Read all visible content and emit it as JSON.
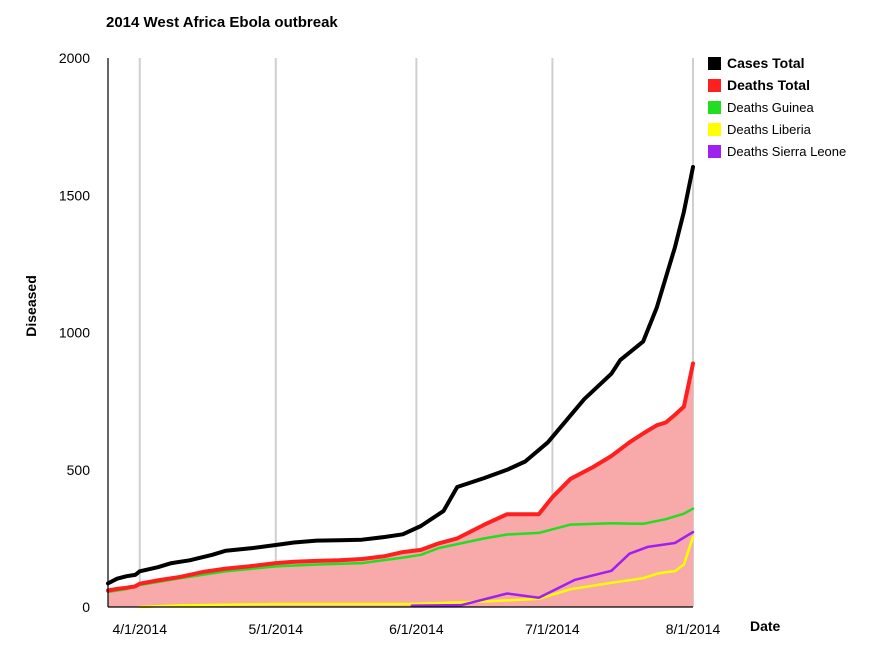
{
  "chart_data": {
    "type": "line",
    "title": "2014 West Africa Ebola outbreak",
    "xlabel": "Date",
    "ylabel": "Diseased",
    "x_range": [
      "2014-03-25",
      "2014-08-01"
    ],
    "ylim": [
      0,
      2000
    ],
    "y_ticks": [
      "0",
      "500",
      "1000",
      "1500",
      "2000"
    ],
    "x_ticks": [
      {
        "date": "2014-04-01",
        "label": "4/1/2014"
      },
      {
        "date": "2014-05-01",
        "label": "5/1/2014"
      },
      {
        "date": "2014-06-01",
        "label": "6/1/2014"
      },
      {
        "date": "2014-07-01",
        "label": "7/1/2014"
      },
      {
        "date": "2014-08-01",
        "label": "8/1/2014"
      }
    ],
    "grid": "vertical",
    "legend_position": "top-right",
    "fill_under": {
      "series": "Deaths Total",
      "color": "#f8a9a9"
    },
    "series": [
      {
        "name": "Cases Total",
        "color": "#000000",
        "bold": true,
        "points": [
          [
            "2014-03-25",
            86
          ],
          [
            "2014-03-27",
            103
          ],
          [
            "2014-03-29",
            112
          ],
          [
            "2014-03-31",
            117
          ],
          [
            "2014-04-01",
            130
          ],
          [
            "2014-04-05",
            145
          ],
          [
            "2014-04-08",
            160
          ],
          [
            "2014-04-12",
            170
          ],
          [
            "2014-04-17",
            190
          ],
          [
            "2014-04-20",
            205
          ],
          [
            "2014-04-26",
            215
          ],
          [
            "2014-05-01",
            226
          ],
          [
            "2014-05-05",
            235
          ],
          [
            "2014-05-10",
            242
          ],
          [
            "2014-05-15",
            243
          ],
          [
            "2014-05-20",
            245
          ],
          [
            "2014-05-25",
            255
          ],
          [
            "2014-05-29",
            265
          ],
          [
            "2014-06-02",
            295
          ],
          [
            "2014-06-07",
            350
          ],
          [
            "2014-06-10",
            437
          ],
          [
            "2014-06-16",
            470
          ],
          [
            "2014-06-21",
            500
          ],
          [
            "2014-06-25",
            530
          ],
          [
            "2014-06-30",
            600
          ],
          [
            "2014-07-08",
            757
          ],
          [
            "2014-07-14",
            850
          ],
          [
            "2014-07-16",
            900
          ],
          [
            "2014-07-21",
            967
          ],
          [
            "2014-07-24",
            1090
          ],
          [
            "2014-07-26",
            1200
          ],
          [
            "2014-07-28",
            1310
          ],
          [
            "2014-07-30",
            1440
          ],
          [
            "2014-08-01",
            1603
          ]
        ]
      },
      {
        "name": "Deaths Total",
        "color": "#ff1f1f",
        "bold": true,
        "points": [
          [
            "2014-03-25",
            60
          ],
          [
            "2014-03-27",
            66
          ],
          [
            "2014-03-29",
            70
          ],
          [
            "2014-03-31",
            75
          ],
          [
            "2014-04-01",
            85
          ],
          [
            "2014-04-05",
            97
          ],
          [
            "2014-04-10",
            110
          ],
          [
            "2014-04-15",
            128
          ],
          [
            "2014-04-20",
            140
          ],
          [
            "2014-04-25",
            148
          ],
          [
            "2014-05-01",
            160
          ],
          [
            "2014-05-05",
            165
          ],
          [
            "2014-05-10",
            168
          ],
          [
            "2014-05-15",
            170
          ],
          [
            "2014-05-20",
            175
          ],
          [
            "2014-05-25",
            185
          ],
          [
            "2014-05-29",
            200
          ],
          [
            "2014-06-02",
            208
          ],
          [
            "2014-06-06",
            232
          ],
          [
            "2014-06-10",
            250
          ],
          [
            "2014-06-16",
            300
          ],
          [
            "2014-06-21",
            338
          ],
          [
            "2014-06-25",
            338
          ],
          [
            "2014-06-28",
            338
          ],
          [
            "2014-07-01",
            400
          ],
          [
            "2014-07-05",
            467
          ],
          [
            "2014-07-10",
            510
          ],
          [
            "2014-07-14",
            550
          ],
          [
            "2014-07-18",
            600
          ],
          [
            "2014-07-21",
            632
          ],
          [
            "2014-07-24",
            662
          ],
          [
            "2014-07-26",
            672
          ],
          [
            "2014-07-28",
            700
          ],
          [
            "2014-07-30",
            730
          ],
          [
            "2014-08-01",
            887
          ]
        ]
      },
      {
        "name": "Deaths Guinea",
        "color": "#22dd22",
        "bold": false,
        "points": [
          [
            "2014-03-25",
            55
          ],
          [
            "2014-03-29",
            65
          ],
          [
            "2014-04-01",
            80
          ],
          [
            "2014-04-10",
            105
          ],
          [
            "2014-04-20",
            130
          ],
          [
            "2014-05-01",
            148
          ],
          [
            "2014-05-10",
            155
          ],
          [
            "2014-05-20",
            160
          ],
          [
            "2014-05-29",
            180
          ],
          [
            "2014-06-02",
            190
          ],
          [
            "2014-06-06",
            215
          ],
          [
            "2014-06-16",
            250
          ],
          [
            "2014-06-21",
            264
          ],
          [
            "2014-06-28",
            270
          ],
          [
            "2014-07-05",
            300
          ],
          [
            "2014-07-14",
            305
          ],
          [
            "2014-07-21",
            303
          ],
          [
            "2014-07-26",
            320
          ],
          [
            "2014-07-30",
            340
          ],
          [
            "2014-08-01",
            358
          ]
        ]
      },
      {
        "name": "Deaths Liberia",
        "color": "#ffff00",
        "bold": false,
        "points": [
          [
            "2014-04-01",
            0
          ],
          [
            "2014-04-10",
            6
          ],
          [
            "2014-05-01",
            11
          ],
          [
            "2014-05-31",
            11
          ],
          [
            "2014-06-16",
            20
          ],
          [
            "2014-06-28",
            30
          ],
          [
            "2014-07-05",
            65
          ],
          [
            "2014-07-14",
            88
          ],
          [
            "2014-07-21",
            105
          ],
          [
            "2014-07-24",
            121
          ],
          [
            "2014-07-26",
            127
          ],
          [
            "2014-07-28",
            130
          ],
          [
            "2014-07-30",
            155
          ],
          [
            "2014-08-01",
            255
          ]
        ]
      },
      {
        "name": "Deaths Sierra Leone",
        "color": "#a020f0",
        "bold": false,
        "points": [
          [
            "2014-05-31",
            5
          ],
          [
            "2014-06-06",
            6
          ],
          [
            "2014-06-11",
            7
          ],
          [
            "2014-06-21",
            49
          ],
          [
            "2014-06-28",
            34
          ],
          [
            "2014-07-06",
            99
          ],
          [
            "2014-07-14",
            132
          ],
          [
            "2014-07-18",
            194
          ],
          [
            "2014-07-22",
            219
          ],
          [
            "2014-07-28",
            233
          ],
          [
            "2014-08-01",
            273
          ]
        ]
      }
    ]
  }
}
